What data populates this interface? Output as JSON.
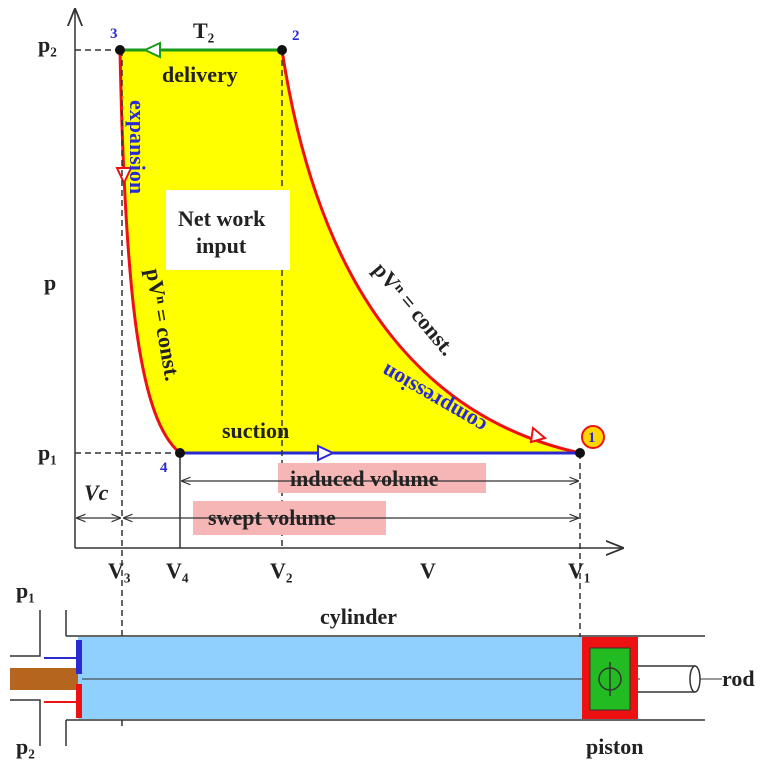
{
  "graph": {
    "pressures": {
      "p1": "p₁",
      "p2": "p₂"
    },
    "temperature": "T₂",
    "p_axis": "p",
    "v_axis": "V",
    "points": {
      "p1": "1",
      "p2": "2",
      "p3": "3",
      "p4": "4"
    },
    "volumes": {
      "v3": "V₃",
      "v4": "V₄",
      "v2": "V₂",
      "v1": "V₁"
    },
    "processes": {
      "delivery": "delivery",
      "expansion": "expansion",
      "compression": "compression",
      "suction": "suction",
      "law_left": "pVⁿ = const.",
      "law_right": "pVⁿ = const."
    },
    "net_work": [
      "Net work",
      "input"
    ],
    "induced_volume": "induced volume",
    "swept_volume": "swept volume",
    "clearance": "Vc"
  },
  "cylinder": {
    "label": "cylinder",
    "rod": "rod",
    "piston": "piston",
    "port_top": "p₁",
    "port_bottom": "p₂"
  }
}
